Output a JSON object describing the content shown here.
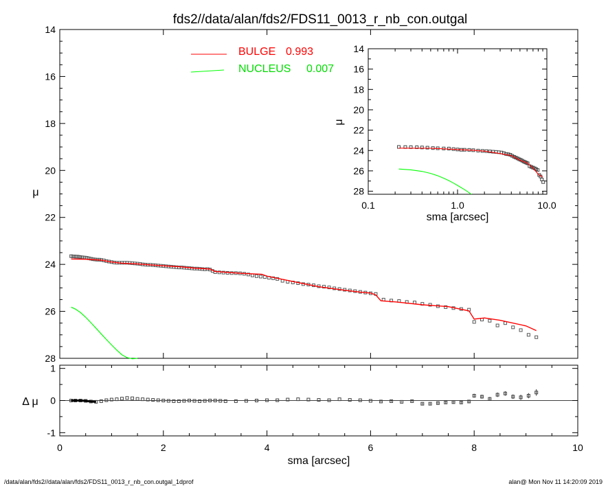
{
  "title": "fds2//data/alan/fds2/FDS11_0013_r_nb_con.outgal",
  "footer_left": "/data/alan/fds2//data/alan/fds2/FDS11_0013_r_nb_con.outgal_1dprof",
  "footer_right": "alan@  Mon Nov 11 14:20:09 2019",
  "colors": {
    "data": "#000000",
    "bulge": "#ff0000",
    "nucleus": "#00ff00",
    "frame": "#000000"
  },
  "chart_data": [
    {
      "id": "main",
      "type": "scatter",
      "xlabel": "sma [arcsec]",
      "ylabel": "μ",
      "xlim": [
        0,
        10
      ],
      "ylim": [
        28,
        14
      ],
      "yinverted": true,
      "xticks": [
        "0",
        "2",
        "4",
        "6",
        "8",
        "10"
      ],
      "yticks": [
        "14",
        "16",
        "18",
        "20",
        "22",
        "24",
        "26",
        "28"
      ],
      "legend": [
        {
          "label": "BULGE",
          "value": "0.993",
          "color": "#ff0000"
        },
        {
          "label": "NUCLEUS",
          "value": "0.007",
          "color": "#00ff00"
        }
      ],
      "series": [
        {
          "name": "data",
          "style": "squares",
          "x": [
            0.22,
            0.25,
            0.28,
            0.31,
            0.34,
            0.37,
            0.4,
            0.44,
            0.48,
            0.52,
            0.56,
            0.6,
            0.64,
            0.68,
            0.72,
            0.76,
            0.8,
            0.85,
            0.9,
            0.95,
            1.0,
            1.05,
            1.1,
            1.15,
            1.2,
            1.25,
            1.3,
            1.35,
            1.4,
            1.45,
            1.5,
            1.55,
            1.6,
            1.65,
            1.7,
            1.75,
            1.8,
            1.85,
            1.9,
            1.95,
            2.0,
            2.05,
            2.1,
            2.15,
            2.2,
            2.25,
            2.3,
            2.35,
            2.4,
            2.45,
            2.5,
            2.55,
            2.6,
            2.65,
            2.7,
            2.75,
            2.8,
            2.85,
            2.9,
            2.95,
            3.0,
            3.08,
            3.16,
            3.24,
            3.32,
            3.4,
            3.48,
            3.56,
            3.64,
            3.72,
            3.8,
            3.88,
            3.96,
            4.04,
            4.12,
            4.2,
            4.3,
            4.4,
            4.5,
            4.6,
            4.7,
            4.8,
            4.9,
            5.0,
            5.1,
            5.2,
            5.3,
            5.4,
            5.5,
            5.6,
            5.7,
            5.8,
            5.9,
            6.0,
            6.1,
            6.25,
            6.4,
            6.55,
            6.7,
            6.85,
            7.0,
            7.15,
            7.3,
            7.45,
            7.6,
            7.75,
            7.9,
            8.0,
            8.15,
            8.3,
            8.45,
            8.6,
            8.75,
            8.9,
            9.05,
            9.2
          ],
          "y": [
            23.65,
            23.66,
            23.66,
            23.67,
            23.67,
            23.68,
            23.69,
            23.7,
            23.71,
            23.72,
            23.74,
            23.76,
            23.78,
            23.79,
            23.8,
            23.8,
            23.81,
            23.83,
            23.86,
            23.88,
            23.9,
            23.92,
            23.93,
            23.93,
            23.93,
            23.93,
            23.93,
            23.94,
            23.95,
            23.96,
            23.97,
            23.98,
            24.0,
            24.01,
            24.02,
            24.02,
            24.03,
            24.04,
            24.05,
            24.06,
            24.07,
            24.08,
            24.09,
            24.1,
            24.11,
            24.12,
            24.13,
            24.13,
            24.14,
            24.15,
            24.16,
            24.17,
            24.18,
            24.18,
            24.19,
            24.2,
            24.21,
            24.2,
            24.22,
            24.28,
            24.33,
            24.34,
            24.35,
            24.36,
            24.37,
            24.37,
            24.38,
            24.4,
            24.43,
            24.47,
            24.5,
            24.52,
            24.54,
            24.57,
            24.59,
            24.62,
            24.7,
            24.74,
            24.77,
            24.8,
            24.84,
            24.86,
            24.89,
            24.93,
            24.95,
            24.98,
            25.02,
            25.05,
            25.08,
            25.11,
            25.14,
            25.17,
            25.2,
            25.23,
            25.26,
            25.5,
            25.54,
            25.56,
            25.6,
            25.62,
            25.68,
            25.72,
            25.78,
            25.82,
            25.86,
            25.9,
            25.93,
            26.45,
            26.35,
            26.4,
            26.6,
            26.5,
            26.68,
            26.8,
            27.0,
            27.1
          ]
        },
        {
          "name": "BULGE",
          "style": "line",
          "color": "#ff0000",
          "x": [
            0.22,
            0.5,
            0.8,
            1.0,
            1.2,
            1.5,
            1.8,
            2.0,
            2.3,
            2.6,
            2.9,
            3.0,
            3.5,
            3.9,
            4.0,
            4.5,
            5.0,
            5.5,
            5.8,
            6.0,
            6.1,
            6.2,
            6.5,
            7.0,
            7.5,
            7.9,
            8.0,
            8.2,
            8.5,
            9.0,
            9.2
          ],
          "y": [
            23.77,
            23.78,
            23.82,
            23.9,
            23.95,
            23.98,
            24.03,
            24.06,
            24.1,
            24.16,
            24.2,
            24.3,
            24.38,
            24.42,
            24.5,
            24.73,
            24.95,
            25.1,
            25.18,
            25.22,
            25.3,
            25.55,
            25.6,
            25.72,
            25.8,
            25.98,
            26.33,
            26.28,
            26.38,
            26.62,
            26.82
          ]
        },
        {
          "name": "NUCLEUS",
          "style": "line",
          "color": "#00ff00",
          "x": [
            0.22,
            0.3,
            0.4,
            0.5,
            0.6,
            0.7,
            0.8,
            0.9,
            1.0,
            1.1,
            1.2,
            1.3,
            1.4,
            1.5
          ],
          "y": [
            25.82,
            25.9,
            26.05,
            26.25,
            26.48,
            26.72,
            26.96,
            27.2,
            27.43,
            27.65,
            27.85,
            27.97,
            28.02,
            28.0
          ]
        }
      ]
    },
    {
      "id": "residual",
      "type": "scatter",
      "xlabel": "sma [arcsec]",
      "ylabel": "Δ μ",
      "xlim": [
        0,
        10
      ],
      "ylim": [
        -1.1,
        1.1
      ],
      "xticks": [
        "0",
        "2",
        "4",
        "6",
        "8",
        "10"
      ],
      "yticks": [
        "1",
        "0",
        "-1"
      ],
      "series": [
        {
          "name": "residual",
          "style": "squares-errorbars",
          "x": [
            0.22,
            0.3,
            0.4,
            0.5,
            0.6,
            0.7,
            0.8,
            0.9,
            1.0,
            1.1,
            1.2,
            1.3,
            1.4,
            1.5,
            1.6,
            1.7,
            1.8,
            1.9,
            2.0,
            2.1,
            2.2,
            2.3,
            2.4,
            2.5,
            2.6,
            2.7,
            2.8,
            2.9,
            3.0,
            3.1,
            3.2,
            3.4,
            3.6,
            3.8,
            4.0,
            4.2,
            4.4,
            4.6,
            4.8,
            5.0,
            5.2,
            5.4,
            5.6,
            5.8,
            6.0,
            6.2,
            6.4,
            6.6,
            6.8,
            7.0,
            7.15,
            7.3,
            7.45,
            7.6,
            7.75,
            7.9,
            8.0,
            8.15,
            8.3,
            8.45,
            8.6,
            8.75,
            8.9,
            9.05,
            9.2
          ],
          "y": [
            0.0,
            0.0,
            0.0,
            -0.01,
            -0.03,
            -0.04,
            -0.02,
            0.01,
            0.03,
            0.04,
            0.06,
            0.08,
            0.07,
            0.05,
            0.04,
            0.03,
            0.02,
            0.01,
            0.0,
            -0.01,
            -0.02,
            -0.02,
            -0.01,
            0.0,
            -0.01,
            -0.02,
            -0.01,
            0.0,
            0.0,
            -0.01,
            -0.02,
            -0.02,
            -0.01,
            0.0,
            0.01,
            0.01,
            0.03,
            0.04,
            0.03,
            0.02,
            0.01,
            0.04,
            0.02,
            0.01,
            -0.01,
            -0.03,
            -0.02,
            -0.04,
            -0.02,
            -0.1,
            -0.1,
            -0.08,
            -0.06,
            -0.05,
            -0.06,
            -0.03,
            0.15,
            0.12,
            0.05,
            0.18,
            0.22,
            0.12,
            0.1,
            0.15,
            0.25
          ],
          "err": [
            0.01,
            0.01,
            0.01,
            0.01,
            0.01,
            0.01,
            0.01,
            0.01,
            0.01,
            0.01,
            0.01,
            0.01,
            0.01,
            0.01,
            0.01,
            0.01,
            0.01,
            0.01,
            0.01,
            0.01,
            0.01,
            0.01,
            0.01,
            0.01,
            0.01,
            0.01,
            0.01,
            0.01,
            0.01,
            0.01,
            0.01,
            0.01,
            0.01,
            0.01,
            0.01,
            0.01,
            0.01,
            0.01,
            0.01,
            0.01,
            0.01,
            0.01,
            0.01,
            0.01,
            0.01,
            0.02,
            0.02,
            0.02,
            0.02,
            0.03,
            0.03,
            0.04,
            0.04,
            0.05,
            0.05,
            0.05,
            0.06,
            0.06,
            0.06,
            0.07,
            0.07,
            0.07,
            0.08,
            0.08,
            0.1
          ]
        }
      ]
    },
    {
      "id": "inset",
      "type": "scatter",
      "xlabel": "sma [arcsec]",
      "ylabel": "μ",
      "xscale": "log",
      "xlim": [
        0.1,
        10
      ],
      "ylim": [
        28.3,
        14
      ],
      "yinverted": true,
      "xticks": [
        "0.1",
        "1.0",
        "10.0"
      ],
      "yticks": [
        "14",
        "16",
        "18",
        "20",
        "22",
        "24",
        "26",
        "28"
      ],
      "series": [
        {
          "name": "data",
          "style": "squares",
          "x": [
            0.22,
            0.26,
            0.3,
            0.35,
            0.4,
            0.46,
            0.53,
            0.6,
            0.7,
            0.8,
            0.9,
            1.0,
            1.1,
            1.2,
            1.35,
            1.5,
            1.7,
            1.9,
            2.1,
            2.3,
            2.5,
            2.7,
            2.9,
            3.1,
            3.3,
            3.5,
            3.7,
            3.9,
            4.1,
            4.3,
            4.5,
            4.7,
            4.9,
            5.1,
            5.3,
            5.5,
            5.7,
            5.9,
            6.1,
            6.4,
            6.7,
            7.0,
            7.3,
            7.6,
            7.9,
            8.2,
            8.5,
            8.8,
            9.1
          ],
          "y": [
            23.65,
            23.66,
            23.67,
            23.68,
            23.7,
            23.72,
            23.76,
            23.78,
            23.8,
            23.81,
            23.86,
            23.9,
            23.93,
            23.93,
            23.94,
            23.97,
            24.01,
            24.04,
            24.06,
            24.09,
            24.12,
            24.14,
            24.17,
            24.2,
            24.26,
            24.34,
            24.37,
            24.42,
            24.53,
            24.62,
            24.7,
            24.78,
            24.86,
            24.92,
            25.0,
            25.08,
            25.14,
            25.2,
            25.26,
            25.54,
            25.61,
            25.68,
            25.75,
            25.84,
            25.92,
            26.4,
            26.55,
            26.85,
            27.1
          ]
        },
        {
          "name": "BULGE",
          "style": "line",
          "color": "#ff0000",
          "x": [
            0.22,
            0.5,
            1.0,
            1.5,
            2.0,
            3.0,
            4.0,
            5.0,
            6.0,
            7.0,
            8.0,
            9.0
          ],
          "y": [
            23.77,
            23.78,
            23.9,
            23.98,
            24.06,
            24.3,
            24.5,
            24.95,
            25.22,
            25.72,
            26.33,
            26.62
          ]
        },
        {
          "name": "NUCLEUS",
          "style": "line",
          "color": "#00ff00",
          "x": [
            0.22,
            0.3,
            0.4,
            0.5,
            0.6,
            0.7,
            0.8,
            0.9,
            1.0,
            1.1,
            1.2,
            1.3,
            1.4,
            1.5
          ],
          "y": [
            25.82,
            25.9,
            26.05,
            26.25,
            26.48,
            26.72,
            26.96,
            27.2,
            27.43,
            27.65,
            27.85,
            28.05,
            28.25,
            28.45
          ]
        }
      ]
    }
  ]
}
